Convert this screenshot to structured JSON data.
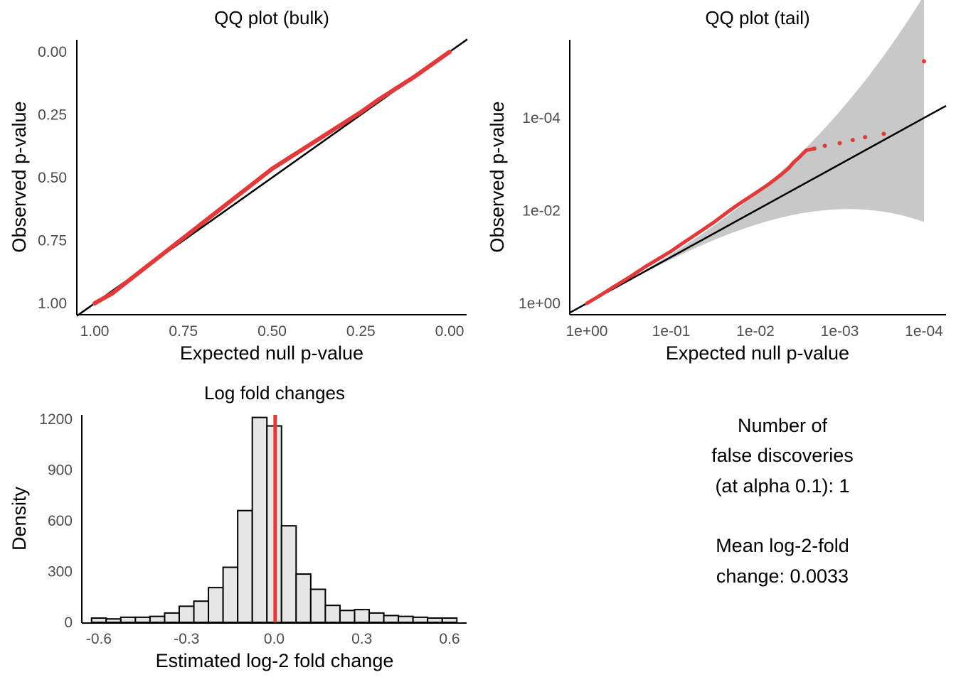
{
  "colors": {
    "points": "#e03a3a",
    "ref_line": "#000000",
    "band": "#c8c8c8",
    "bars": "#e6e6e6",
    "mean_line": "#e03a3a"
  },
  "chart_data": [
    {
      "type": "scatter",
      "title": "QQ plot (bulk)",
      "xlabel": "Expected null p-value",
      "ylabel": "Observed p-value",
      "xlim": [
        1.0,
        0.0
      ],
      "ylim": [
        1.0,
        0.0
      ],
      "xticks": [
        "1.00",
        "0.75",
        "0.50",
        "0.25",
        "0.00"
      ],
      "yticks": [
        "0.00",
        "0.25",
        "0.50",
        "0.75",
        "1.00"
      ],
      "reference_line": "y = x",
      "series": [
        {
          "x": [
            1.0,
            0.95,
            0.9,
            0.85,
            0.8,
            0.75,
            0.7,
            0.65,
            0.6,
            0.55,
            0.5,
            0.45,
            0.4,
            0.35,
            0.3,
            0.25,
            0.2,
            0.15,
            0.1,
            0.05,
            0.0
          ],
          "y": [
            1.0,
            0.96,
            0.905,
            0.85,
            0.795,
            0.74,
            0.685,
            0.63,
            0.575,
            0.52,
            0.465,
            0.42,
            0.375,
            0.33,
            0.285,
            0.24,
            0.19,
            0.145,
            0.1,
            0.05,
            0.0
          ]
        }
      ]
    },
    {
      "type": "scatter",
      "title": "QQ plot (tail)",
      "xlabel": "Expected null p-value",
      "ylabel": "Observed p-value",
      "xscale": "log",
      "yscale": "log",
      "xlim": [
        1.0,
        0.0001
      ],
      "ylim": [
        1.0,
        1e-05
      ],
      "xticks": [
        "1e+00",
        "1e-01",
        "1e-02",
        "1e-03",
        "1e-04"
      ],
      "yticks": [
        "1e+00",
        "1e-02",
        "1e-04"
      ],
      "reference_line": "y = x",
      "confidence_band": "shaded",
      "series": [
        {
          "x": [
            1.0,
            0.7,
            0.5,
            0.3,
            0.2,
            0.1,
            0.07,
            0.05,
            0.03,
            0.02,
            0.015,
            0.01,
            0.007,
            0.005,
            0.004,
            0.0035,
            0.003,
            0.0025,
            0.002,
            0.0015,
            0.001,
            0.0007,
            0.0005,
            0.0003,
            0.0001
          ],
          "y": [
            1.0,
            0.68,
            0.46,
            0.26,
            0.16,
            0.075,
            0.048,
            0.032,
            0.017,
            0.0098,
            0.0068,
            0.0042,
            0.0027,
            0.0017,
            0.0012,
            0.0009,
            0.0007,
            0.0005,
            0.00046,
            0.0004,
            0.00035,
            0.0003,
            0.00026,
            0.00022,
            6e-06
          ]
        }
      ]
    },
    {
      "type": "bar",
      "title": "Log fold changes",
      "xlabel": "Estimated log-2 fold change",
      "ylabel": "Density",
      "xlim": [
        -0.65,
        0.65
      ],
      "ylim": [
        0,
        1230
      ],
      "xticks": [
        "-0.6",
        "-0.3",
        "0.0",
        "0.3",
        "0.6"
      ],
      "yticks": [
        "0",
        "300",
        "600",
        "900",
        "1200"
      ],
      "bin_width": 0.05,
      "bin_centers": [
        -0.6,
        -0.55,
        -0.5,
        -0.45,
        -0.4,
        -0.35,
        -0.3,
        -0.25,
        -0.2,
        -0.15,
        -0.1,
        -0.05,
        0.0,
        0.05,
        0.1,
        0.15,
        0.2,
        0.25,
        0.3,
        0.35,
        0.4,
        0.45,
        0.5,
        0.55,
        0.6
      ],
      "values": [
        25,
        20,
        30,
        30,
        35,
        55,
        95,
        125,
        205,
        325,
        660,
        1210,
        1160,
        570,
        285,
        195,
        100,
        70,
        75,
        55,
        40,
        35,
        30,
        25,
        25
      ],
      "mean_line": 0.0033
    }
  ],
  "summary": {
    "lines": [
      "Number of",
      "false discoveries",
      "(at alpha 0.1): 1",
      "",
      "Mean log-2-fold",
      "change: 0.0033"
    ]
  }
}
